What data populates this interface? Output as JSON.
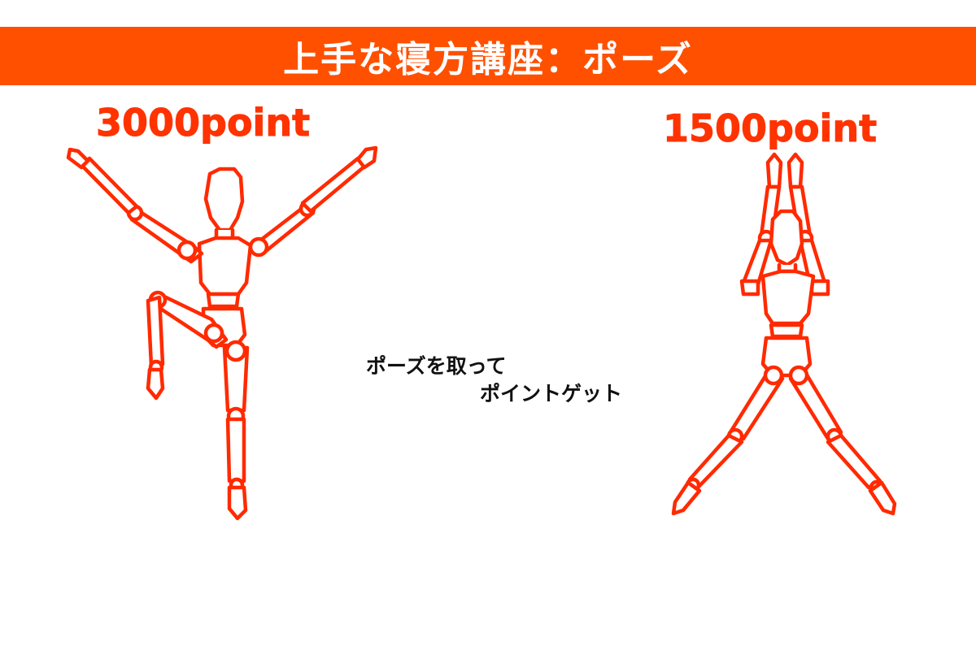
{
  "title": "上手な寝方講座：ポーズ",
  "poses": [
    {
      "score": "3000point",
      "icon": "mannequin-one-leg-raised-pose-icon"
    },
    {
      "score": "1500point",
      "icon": "mannequin-arms-up-legs-apart-pose-icon"
    }
  ],
  "caption": {
    "line1": "ポーズを取って",
    "line2": "ポイントゲット"
  },
  "colors": {
    "banner": "#ff5000",
    "outline": "#ff2a00",
    "title_text": "#ffffff",
    "caption_text": "#111111"
  }
}
